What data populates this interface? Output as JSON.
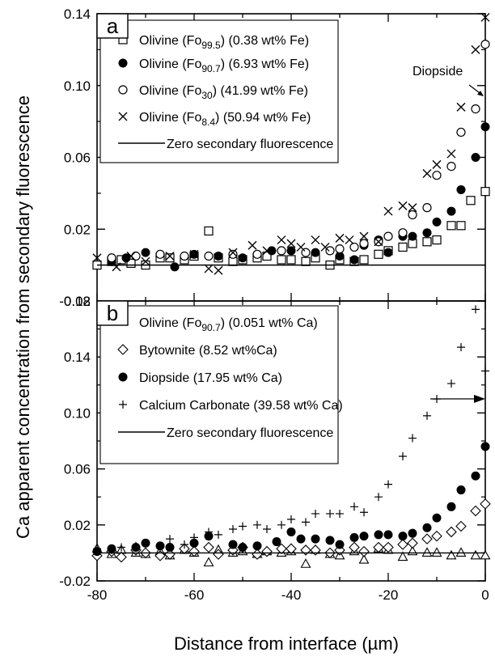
{
  "figure": {
    "ylabel": "Ca apparent concentration from secondary fluorescence",
    "xlabel": "Distance from interface (µm)",
    "xlim": [
      -80,
      0
    ],
    "xticks": [
      -80,
      -60,
      -40,
      -20,
      0
    ]
  },
  "chart_data": [
    {
      "type": "scatter",
      "panel_label": "a",
      "ylim": [
        -0.02,
        0.14
      ],
      "yticks": [
        "-0.02",
        "0.02",
        "0.06",
        "0.10",
        "0.14"
      ],
      "annotation": "Diopside",
      "legend_position": "top-left",
      "legend": [
        {
          "marker": "square",
          "base": "Olivine (Fo",
          "sub": "99.5",
          "rest": ") (0.38 wt% Fe)"
        },
        {
          "marker": "circle-filled",
          "base": "Olivine (Fo",
          "sub": "90.7",
          "rest": ") (6.93 wt% Fe)"
        },
        {
          "marker": "circle-open",
          "base": "Olivine (Fo",
          "sub": "30",
          "rest": ") (41.99 wt% Fe)"
        },
        {
          "marker": "x",
          "base": "Olivine (Fo",
          "sub": "8.4",
          "rest": ") (50.94 wt% Fe)"
        },
        {
          "marker": "line",
          "base": "Zero secondary fluorescence",
          "sub": "",
          "rest": ""
        }
      ],
      "series": [
        {
          "name": "Olivine (Fo99.5) (0.38 wt% Fe)",
          "marker": "square",
          "x": [
            -80,
            -77,
            -75,
            -73,
            -70,
            -67,
            -65,
            -62,
            -60,
            -57,
            -55,
            -52,
            -50,
            -47,
            -45,
            -42,
            -40,
            -37,
            -35,
            -32,
            -30,
            -27,
            -25,
            -22,
            -20,
            -17,
            -15,
            -12,
            -10,
            -7,
            -5,
            -3,
            0
          ],
          "y": [
            0.0,
            0.002,
            0.003,
            0.001,
            0.0,
            0.004,
            0.004,
            0.003,
            0.005,
            0.019,
            0.004,
            0.002,
            0.003,
            0.004,
            0.005,
            0.003,
            0.003,
            0.002,
            0.004,
            0.0,
            0.003,
            0.002,
            0.003,
            0.006,
            0.008,
            0.01,
            0.012,
            0.013,
            0.014,
            0.022,
            0.022,
            0.036,
            0.041
          ]
        },
        {
          "name": "Olivine (Fo90.7) (6.93 wt% Fe)",
          "marker": "circle-filled",
          "x": [
            -77,
            -74,
            -70,
            -64,
            -60,
            -55,
            -50,
            -44,
            -40,
            -35,
            -30,
            -27,
            -25,
            -22,
            -20,
            -17,
            -15,
            -12,
            -10,
            -7,
            -5,
            -2,
            0
          ],
          "y": [
            0.002,
            0.004,
            0.007,
            -0.001,
            0.006,
            0.005,
            0.004,
            0.008,
            0.008,
            0.007,
            0.005,
            0.003,
            0.011,
            0.014,
            0.007,
            0.016,
            0.016,
            0.018,
            0.024,
            0.03,
            0.042,
            0.06,
            0.077
          ]
        },
        {
          "name": "Olivine (Fo30) (41.99 wt% Fe)",
          "marker": "circle-open",
          "x": [
            -77,
            -72,
            -67,
            -62,
            -57,
            -52,
            -47,
            -42,
            -37,
            -32,
            -30,
            -27,
            -25,
            -22,
            -20,
            -17,
            -15,
            -12,
            -10,
            -7,
            -5,
            -2,
            0
          ],
          "y": [
            0.004,
            0.005,
            0.006,
            0.005,
            0.005,
            0.006,
            0.006,
            0.008,
            0.007,
            0.008,
            0.009,
            0.01,
            0.012,
            0.013,
            0.016,
            0.018,
            0.028,
            0.032,
            0.05,
            0.055,
            0.074,
            0.087,
            0.123
          ]
        },
        {
          "name": "Olivine (Fo8.4) (50.94 wt% Fe)",
          "marker": "x",
          "x": [
            -80,
            -76,
            -73,
            -70,
            -65,
            -60,
            -57,
            -55,
            -52,
            -48,
            -45,
            -42,
            -40,
            -38,
            -35,
            -33,
            -30,
            -28,
            -25,
            -22,
            -20,
            -17,
            -15,
            -12,
            -10,
            -7,
            -5,
            -2,
            0
          ],
          "y": [
            0.004,
            -0.001,
            0.005,
            0.002,
            0.005,
            0.006,
            -0.002,
            -0.003,
            0.007,
            0.011,
            0.008,
            0.014,
            0.012,
            0.01,
            0.014,
            0.01,
            0.015,
            0.014,
            0.016,
            0.013,
            0.03,
            0.033,
            0.032,
            0.051,
            0.056,
            0.062,
            0.088,
            0.12,
            0.138
          ]
        },
        {
          "name": "Zero secondary fluorescence",
          "marker": "line",
          "x": [
            -80,
            0
          ],
          "y": [
            0,
            0
          ]
        }
      ]
    },
    {
      "type": "scatter",
      "panel_label": "b",
      "ylim": [
        -0.02,
        0.18
      ],
      "yticks": [
        "-0.02",
        "0.02",
        "0.06",
        "0.10",
        "0.14",
        "0.18"
      ],
      "legend_position": "top-left",
      "legend": [
        {
          "marker": "triangle",
          "base": "Olivine (Fo",
          "sub": "90.7",
          "rest": ") (0.051 wt% Ca)"
        },
        {
          "marker": "diamond",
          "base": "Bytownite (8.52 wt%Ca)",
          "sub": "",
          "rest": ""
        },
        {
          "marker": "circle-filled",
          "base": "Diopside (17.95 wt% Ca)",
          "sub": "",
          "rest": ""
        },
        {
          "marker": "plus",
          "base": "Calcium Carbonate (39.58 wt% Ca)",
          "sub": "",
          "rest": ""
        },
        {
          "marker": "line",
          "base": "Zero secondary fluorescence",
          "sub": "",
          "rest": ""
        }
      ],
      "series": [
        {
          "name": "Olivine (Fo90.7) (0.051 wt% Ca)",
          "marker": "triangle",
          "x": [
            -80,
            -77,
            -75,
            -72,
            -70,
            -67,
            -65,
            -62,
            -60,
            -57,
            -55,
            -52,
            -50,
            -47,
            -45,
            -42,
            -40,
            -37,
            -35,
            -32,
            -30,
            -27,
            -25,
            -22,
            -20,
            -17,
            -15,
            -12,
            -10,
            -7,
            -5,
            -2,
            0
          ],
          "y": [
            0.003,
            -0.001,
            0.002,
            0.0,
            -0.001,
            0.001,
            -0.002,
            0.002,
            0.0,
            -0.007,
            0.002,
            0.0,
            0.001,
            -0.001,
            0.001,
            0.0,
            0.001,
            -0.008,
            0.002,
            -0.001,
            -0.002,
            0.001,
            -0.005,
            0.003,
            0.002,
            -0.003,
            0.001,
            0.0,
            0.0,
            -0.002,
            0.0,
            -0.002,
            -0.002
          ]
        },
        {
          "name": "Bytownite (8.52 wt%Ca)",
          "marker": "diamond",
          "x": [
            -80,
            -77,
            -75,
            -72,
            -70,
            -67,
            -65,
            -62,
            -60,
            -57,
            -55,
            -52,
            -50,
            -47,
            -45,
            -42,
            -40,
            -37,
            -35,
            -32,
            -30,
            -27,
            -25,
            -22,
            -20,
            -17,
            -15,
            -12,
            -10,
            -7,
            -5,
            -2,
            0
          ],
          "y": [
            -0.002,
            0.001,
            -0.003,
            0.002,
            0.0,
            -0.002,
            -0.001,
            0.003,
            0.001,
            0.004,
            -0.001,
            0.002,
            0.004,
            -0.001,
            0.001,
            0.003,
            0.003,
            0.002,
            0.002,
            0.0,
            0.002,
            0.004,
            0.001,
            0.004,
            0.004,
            0.006,
            0.007,
            0.01,
            0.012,
            0.015,
            0.019,
            0.03,
            0.035
          ]
        },
        {
          "name": "Diopside (17.95 wt% Ca)",
          "marker": "circle-filled",
          "x": [
            -80,
            -77,
            -72,
            -70,
            -67,
            -65,
            -60,
            -57,
            -52,
            -50,
            -47,
            -43,
            -40,
            -38,
            -35,
            -32,
            -30,
            -27,
            -25,
            -22,
            -20,
            -17,
            -15,
            -12,
            -10,
            -7,
            -5,
            -2,
            0
          ],
          "y": [
            0.001,
            0.003,
            0.004,
            0.007,
            0.005,
            0.004,
            0.007,
            0.012,
            0.006,
            0.004,
            0.005,
            0.008,
            0.015,
            0.01,
            0.01,
            0.009,
            0.006,
            0.011,
            0.012,
            0.013,
            0.013,
            0.012,
            0.014,
            0.018,
            0.025,
            0.033,
            0.045,
            0.055,
            0.076
          ]
        },
        {
          "name": "Calcium Carbonate (39.58 wt% Ca)",
          "marker": "plus",
          "x": [
            -80,
            -77,
            -75,
            -72,
            -70,
            -67,
            -65,
            -62,
            -60,
            -57,
            -55,
            -52,
            -50,
            -47,
            -45,
            -42,
            -40,
            -37,
            -35,
            -32,
            -30,
            -27,
            -25,
            -22,
            -20,
            -17,
            -15,
            -12,
            -10,
            -7,
            -5,
            -2,
            0
          ],
          "y": [
            0.003,
            0.002,
            0.004,
            0.005,
            0.006,
            0.004,
            0.01,
            0.006,
            0.011,
            0.015,
            0.013,
            0.017,
            0.019,
            0.02,
            0.017,
            0.02,
            0.024,
            0.022,
            0.028,
            0.028,
            0.028,
            0.033,
            0.029,
            0.04,
            0.049,
            0.069,
            0.082,
            0.098,
            0.11,
            0.121,
            0.147,
            0.174,
            0.13
          ]
        },
        {
          "name": "Zero secondary fluorescence",
          "marker": "line",
          "x": [
            -80,
            0
          ],
          "y": [
            0,
            0
          ]
        }
      ]
    }
  ]
}
